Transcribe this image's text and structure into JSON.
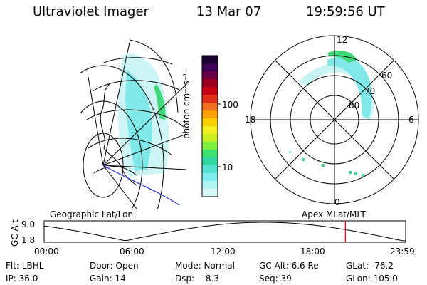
{
  "header": {
    "instrument": "Ultraviolet Imager",
    "date": "13 Mar 07",
    "time": "19:59:56 UT"
  },
  "colorbar": {
    "label": "photon cm⁻²s⁻¹",
    "ticks": [
      "100",
      "10"
    ],
    "colors": [
      "#1a0033",
      "#3b0056",
      "#6a0044",
      "#9a0022",
      "#c80012",
      "#e0301a",
      "#f07020",
      "#f8a000",
      "#f8d000",
      "#f0f020",
      "#c8f020",
      "#80f040",
      "#40e070",
      "#30d8a0",
      "#50e0d0",
      "#80ecec",
      "#b0f4f4",
      "#d8f8f8"
    ]
  },
  "polar_plot": {
    "hour_labels": [
      "12",
      "18",
      "6",
      "0"
    ],
    "lat_labels": [
      "60",
      "70",
      "80"
    ]
  },
  "panel_labels": {
    "left": "Geographic Lat/Lon",
    "right": "Apex MLat/MLT"
  },
  "altitude_chart": {
    "ylabel": "GC Alt",
    "yticks": [
      "9.0",
      "1.8"
    ],
    "xticks": [
      "00:00",
      "06:00",
      "12:00",
      "18:00",
      "23:59"
    ],
    "current_time_hours": 20.0,
    "marker_color": "#d00000"
  },
  "info": {
    "filter": "Flt: LBHL",
    "door": "Door: Open",
    "mode": "Mode: Normal",
    "gc_alt": "GC Alt: 6.6 Re",
    "glat": "GLat: -76.2",
    "ip": "IP: 36.0",
    "gain": "Gain: 14",
    "dsp": "Dsp:   -8.3",
    "seq": "Seq: 39",
    "glon": "GLon: 105.0"
  }
}
